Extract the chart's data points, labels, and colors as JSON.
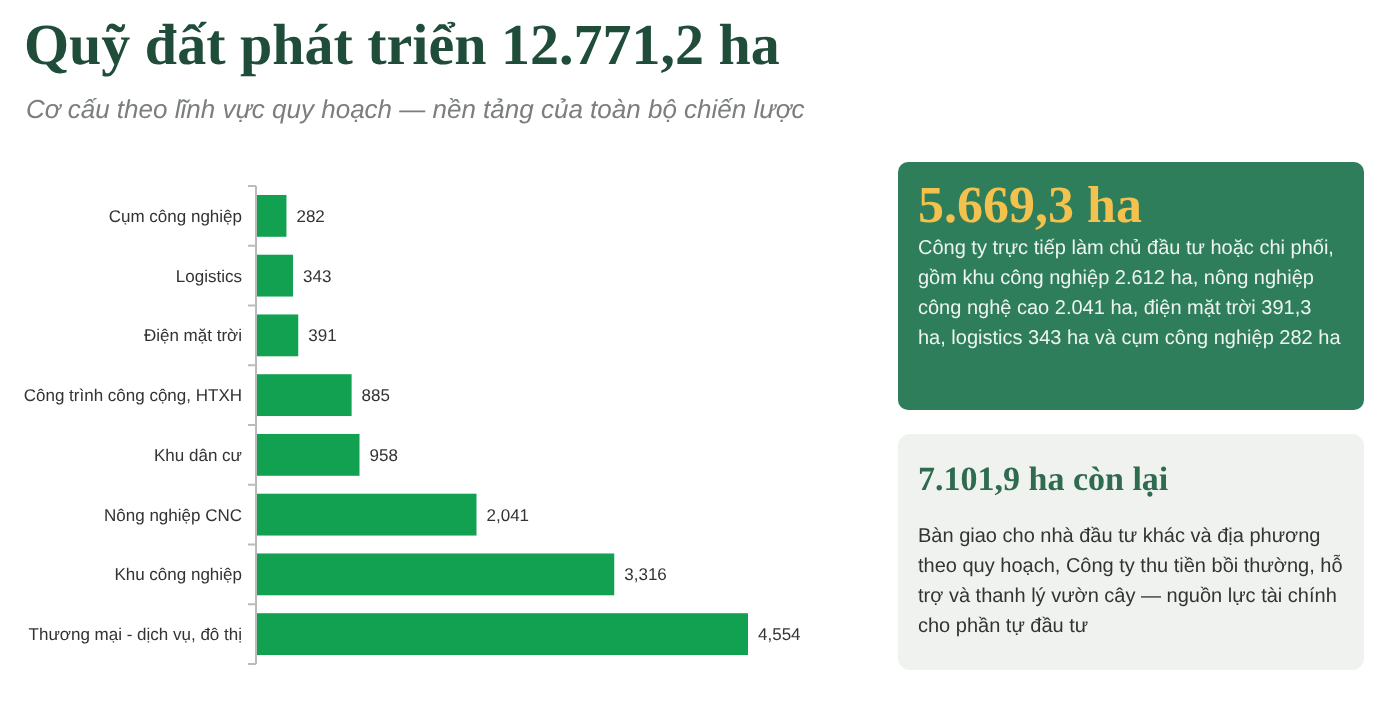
{
  "chart_data": {
    "type": "bar",
    "orientation": "horizontal",
    "title": "Quỹ đất phát triển 12.771,2 ha",
    "subtitle": "Cơ cấu theo lĩnh vực quy hoạch — nền tảng của toàn bộ chiến lược",
    "categories": [
      "Cụm công nghiệp",
      "Logistics",
      "Điện mặt trời",
      "Công trình công cộng, HTXH",
      "Khu dân cư",
      "Nông nghiệp CNC",
      "Khu công nghiệp",
      "Thương mại - dịch vụ, đô thị"
    ],
    "values": [
      282,
      343,
      391,
      885,
      958,
      2041,
      3316,
      4554
    ],
    "value_labels": [
      "282",
      "343",
      "391",
      "885",
      "958",
      "2,041",
      "3,316",
      "4,554"
    ],
    "color": "#12a150",
    "annotations": [
      "5.669,3 ha",
      "Công ty trực tiếp làm chủ đầu tư hoặc chi phối, gồm khu công nghiệp 2.612 ha, nông nghiệp công nghệ cao 2.041 ha, điện mặt trời 391,3 ha, logistics 343 ha và cụm công nghiệp 282 ha",
      "7.101,9 ha còn lại",
      "Bàn giao cho nhà đầu tư khác và địa phương theo quy hoạch, Công ty thu tiền bồi thường, hỗ trợ và thanh lý vườn cây — nguồn lực tài chính cho phần tự đầu tư"
    ]
  }
}
